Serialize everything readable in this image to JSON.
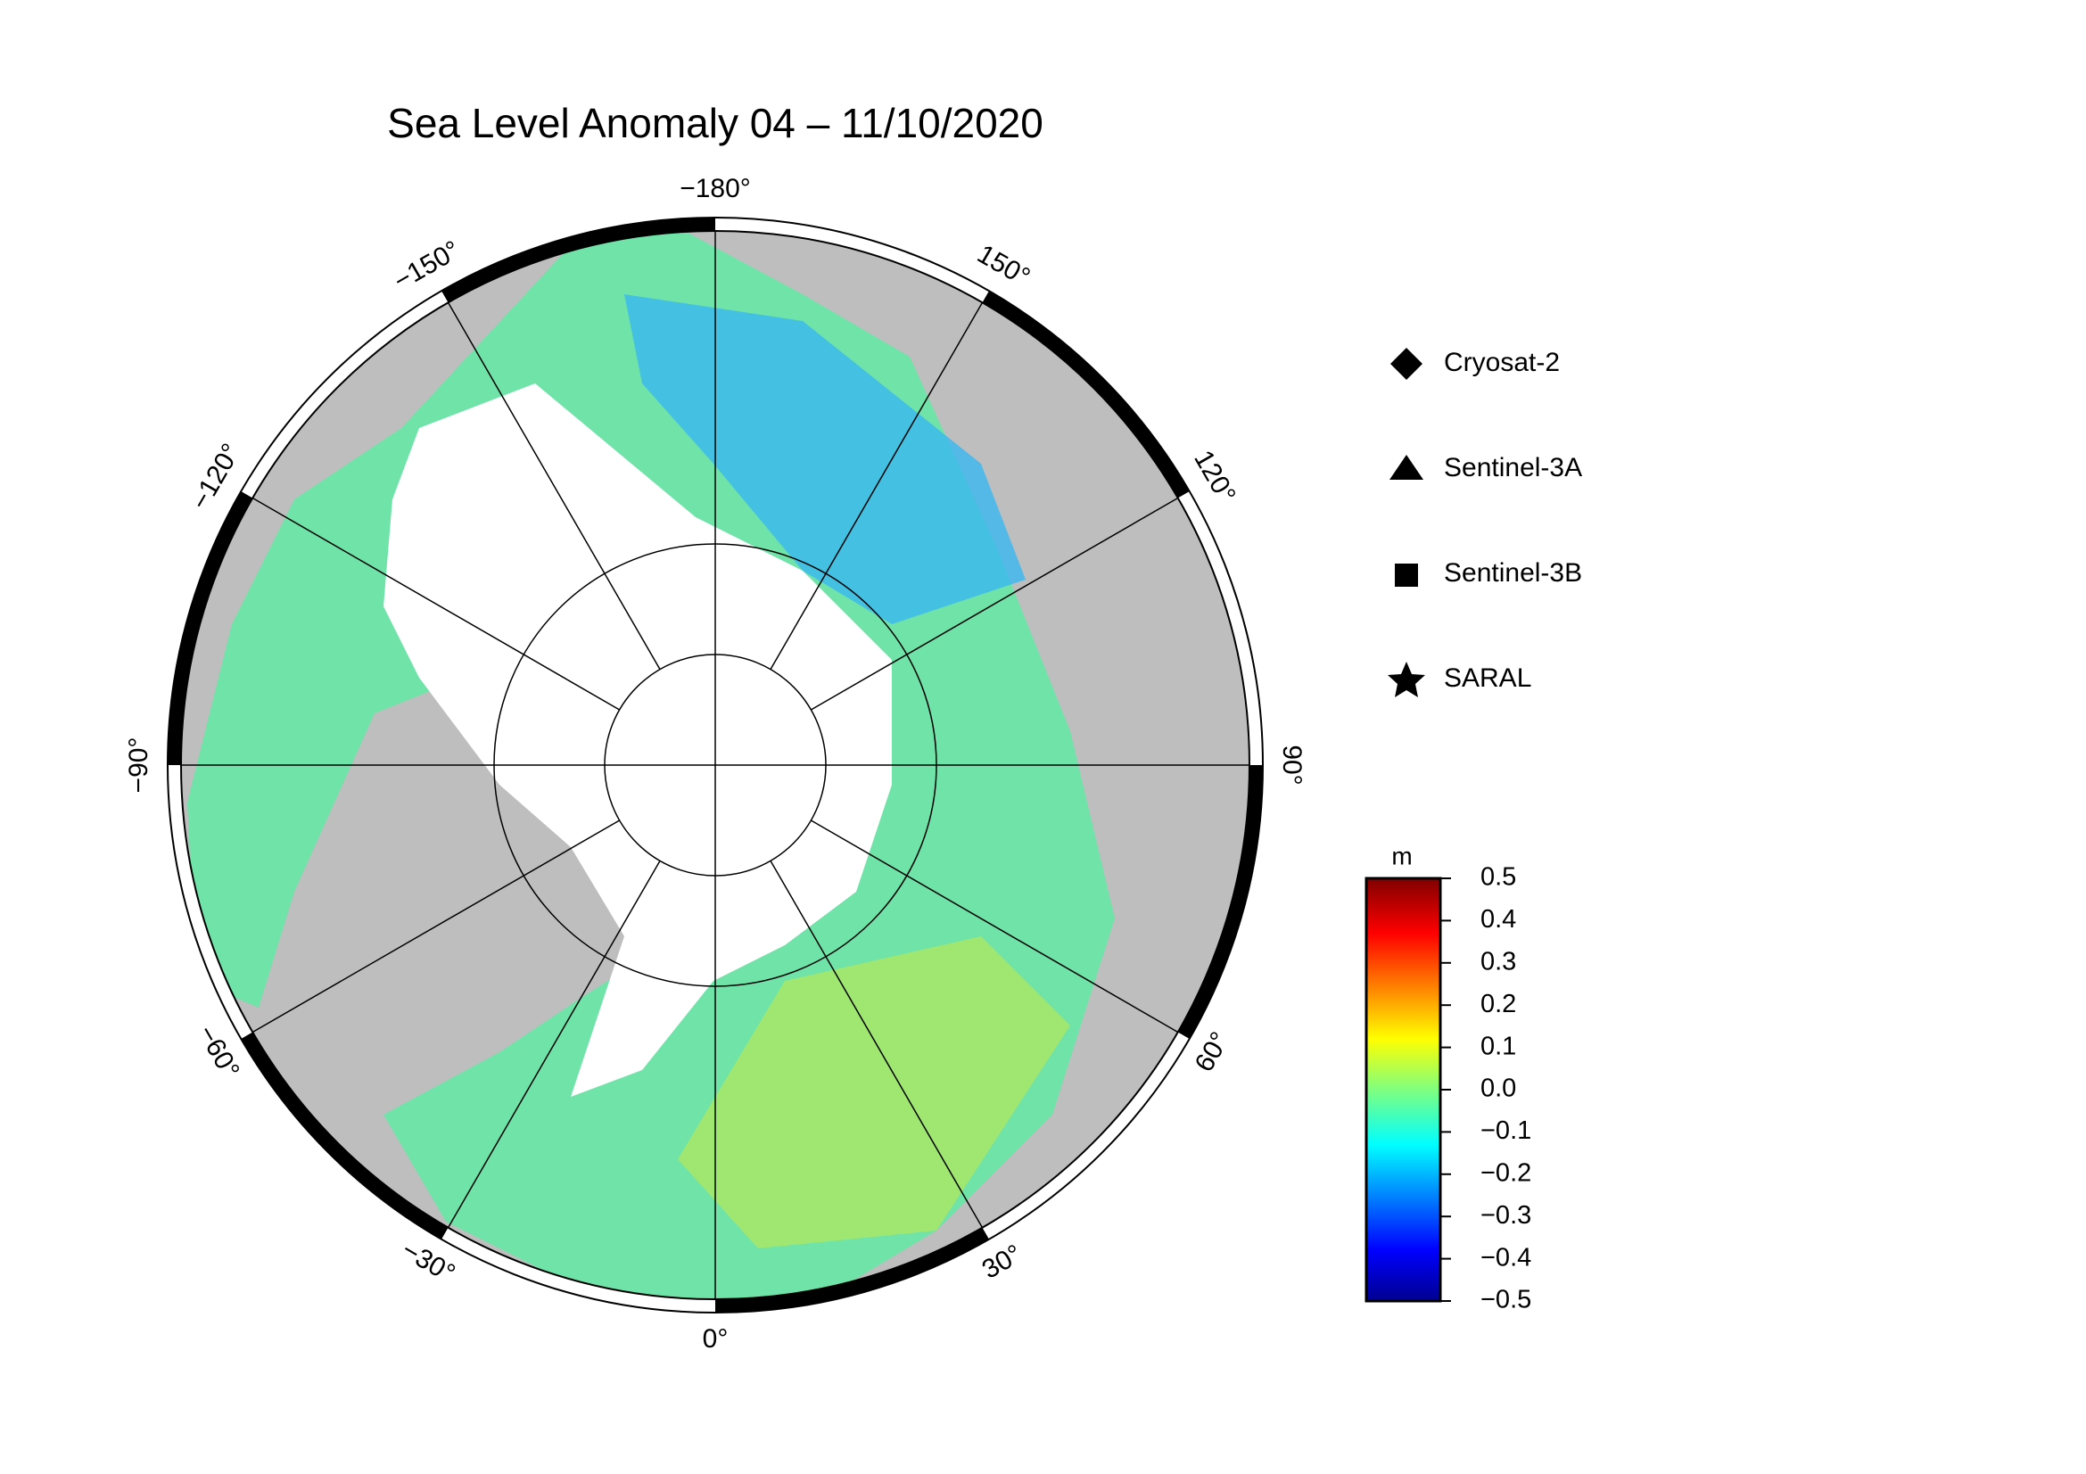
{
  "title": "Sea Level Anomaly 04 – 11/10/2020",
  "map": {
    "meridians": [
      {
        "value": -180,
        "label": "−180°"
      },
      {
        "value": -150,
        "label": "−150°"
      },
      {
        "value": -120,
        "label": "−120°"
      },
      {
        "value": -90,
        "label": "−90°"
      },
      {
        "value": -60,
        "label": "−60°"
      },
      {
        "value": -30,
        "label": "−30°"
      },
      {
        "value": 0,
        "label": "0°"
      },
      {
        "value": 30,
        "label": "30°"
      },
      {
        "value": 60,
        "label": "60°"
      },
      {
        "value": 90,
        "label": "90°"
      },
      {
        "value": 120,
        "label": "120°"
      },
      {
        "value": 150,
        "label": "150°"
      }
    ],
    "parallels": [
      70,
      80
    ]
  },
  "legend": [
    "Cryosat-2",
    "Sentinel-3A",
    "Sentinel-3B",
    "SARAL"
  ],
  "colorbar": {
    "unit": "m",
    "range": [
      -0.5,
      0.5
    ],
    "ticks": [
      0.5,
      0.4,
      0.3,
      0.2,
      0.1,
      {
        "value": 0,
        "label": "0.0"
      },
      {
        "value": -0.1,
        "label": "−0.1"
      },
      {
        "value": -0.2,
        "label": "−0.2"
      },
      {
        "value": -0.3,
        "label": "−0.3"
      },
      {
        "value": -0.4,
        "label": "−0.4"
      },
      {
        "value": -0.5,
        "label": "−0.5"
      }
    ]
  }
}
